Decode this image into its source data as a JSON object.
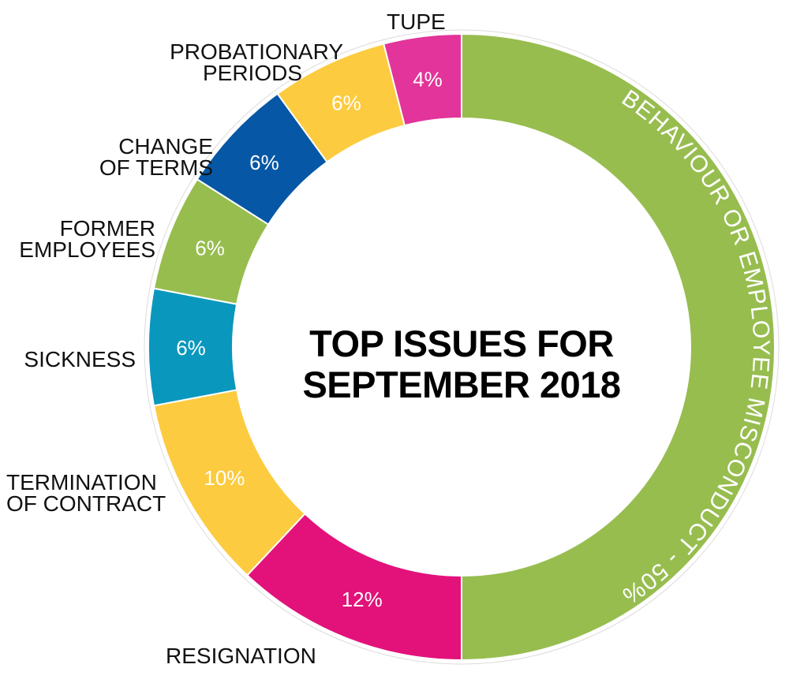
{
  "chart_data": {
    "type": "donut",
    "title_line1": "TOP ISSUES FOR",
    "title_line2": "SEPTEMBER 2018",
    "unit": "%",
    "slices": [
      {
        "id": "behaviour",
        "label": "BEHAVIOUR OR EMPLOYEE MISCONDUCT - 50%",
        "value": 50,
        "value_label": "",
        "color": "#97bd4f",
        "outer_label": []
      },
      {
        "id": "resignation",
        "label": "RESIGNATION",
        "value": 12,
        "value_label": "12%",
        "color": "#e2127a",
        "outer_label": [
          "RESIGNATION"
        ]
      },
      {
        "id": "termination",
        "label": "TERMINATION OF CONTRACT",
        "value": 10,
        "value_label": "10%",
        "color": "#fdcb3f",
        "outer_label": [
          "TERMINATION",
          "OF CONTRACT"
        ]
      },
      {
        "id": "sickness",
        "label": "SICKNESS",
        "value": 6,
        "value_label": "6%",
        "color": "#0a97bd",
        "outer_label": [
          "SICKNESS"
        ]
      },
      {
        "id": "former",
        "label": "FORMER EMPLOYEES",
        "value": 6,
        "value_label": "6%",
        "color": "#97bd4f",
        "outer_label": [
          "FORMER",
          "EMPLOYEES"
        ]
      },
      {
        "id": "change",
        "label": "CHANGE OF TERMS",
        "value": 6,
        "value_label": "6%",
        "color": "#0657a6",
        "outer_label": [
          "CHANGE",
          "OF TERMS"
        ]
      },
      {
        "id": "probationary",
        "label": "PROBATIONARY PERIODS",
        "value": 6,
        "value_label": "6%",
        "color": "#fdcb3f",
        "outer_label": [
          "PROBATIONARY",
          "PERIODS"
        ]
      },
      {
        "id": "tupe",
        "label": "TUPE",
        "value": 4,
        "value_label": "4%",
        "color": "#e2349a",
        "outer_label": [
          "TUPE"
        ]
      }
    ]
  }
}
